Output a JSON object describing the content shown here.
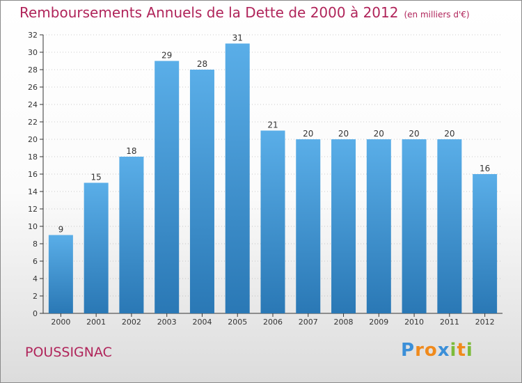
{
  "title": "Remboursements Annuels de la Dette de 2000 à 2012",
  "unit": "(en milliers d'€)",
  "commune": "POUSSIGNAC",
  "logo": {
    "letters": [
      "P",
      "r",
      "o",
      "x",
      "i",
      "t",
      "i"
    ],
    "colors": [
      "#3b8fd8",
      "#f08a1c",
      "#f08a1c",
      "#3b8fd8",
      "#7cbb3a",
      "#f08a1c",
      "#7cbb3a"
    ]
  },
  "colors": {
    "bar_top": "#5aaee8",
    "bar_bottom": "#2a78b5",
    "axis": "#333333",
    "grid": "#9a9a9a",
    "title": "#b0245a"
  },
  "chart_data": {
    "type": "bar",
    "title": "Remboursements Annuels de la Dette de 2000 à 2012",
    "xlabel": "",
    "ylabel": "",
    "categories": [
      "2000",
      "2001",
      "2002",
      "2003",
      "2004",
      "2005",
      "2006",
      "2007",
      "2008",
      "2009",
      "2010",
      "2011",
      "2012"
    ],
    "values": [
      9,
      15,
      18,
      29,
      28,
      31,
      21,
      20,
      20,
      20,
      20,
      20,
      16
    ],
    "ylim": [
      0,
      32
    ],
    "ytick_step": 2,
    "grid": false,
    "legend": "none"
  }
}
